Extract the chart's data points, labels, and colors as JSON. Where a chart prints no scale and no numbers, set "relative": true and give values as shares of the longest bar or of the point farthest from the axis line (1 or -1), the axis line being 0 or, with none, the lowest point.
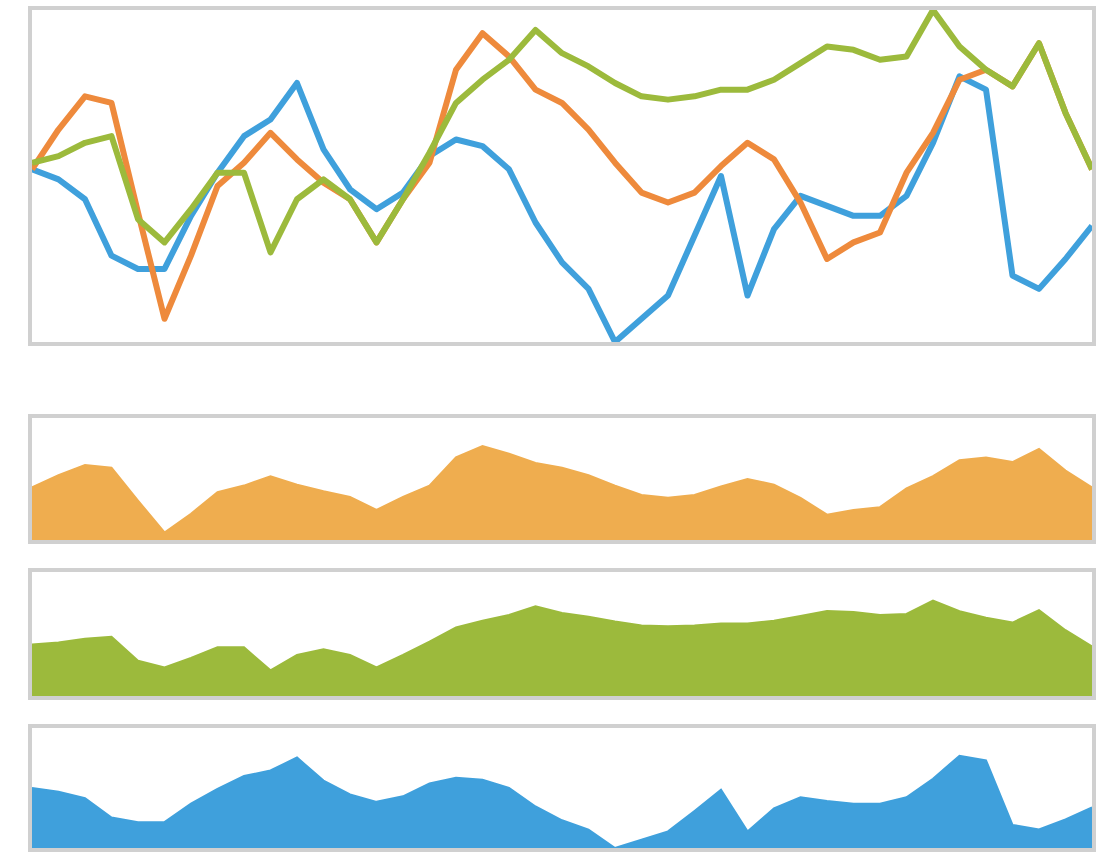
{
  "chart_data": [
    {
      "type": "line",
      "relative": true,
      "tick_labels": false,
      "categories": [
        null,
        null,
        null,
        null,
        null,
        null,
        null,
        null,
        null,
        null,
        null,
        null,
        null,
        null,
        null,
        null,
        null,
        null,
        null,
        null,
        null,
        null,
        null,
        null,
        null,
        null,
        null,
        null,
        null,
        null,
        null,
        null,
        null,
        null,
        null,
        null,
        null,
        null,
        null,
        null,
        null
      ],
      "series": [
        {
          "color": "#3fa0dc",
          "values": [
            0.52,
            0.49,
            0.43,
            0.26,
            0.22,
            0.22,
            0.38,
            0.51,
            0.62,
            0.67,
            0.78,
            0.58,
            0.46,
            0.4,
            0.45,
            0.56,
            0.61,
            0.59,
            0.52,
            0.36,
            0.24,
            0.16,
            0,
            0.07,
            0.14,
            0.32,
            0.5,
            0.14,
            0.34,
            0.44,
            0.41,
            0.38,
            0.38,
            0.44,
            0.6,
            0.8,
            0.76,
            0.2,
            0.16,
            0.25,
            0.35
          ]
        },
        {
          "color": "#ee8a3c",
          "values": [
            0.52,
            0.64,
            0.74,
            0.72,
            0.39,
            0.07,
            0.26,
            0.47,
            0.54,
            0.63,
            0.55,
            0.48,
            0.43,
            0.3,
            0.43,
            0.54,
            0.82,
            0.93,
            0.86,
            0.76,
            0.72,
            0.64,
            0.54,
            0.45,
            0.42,
            0.45,
            0.53,
            0.6,
            0.55,
            0.42,
            0.25,
            0.3,
            0.33,
            0.51,
            0.63,
            0.79,
            0.82,
            0.77,
            0.9,
            0.69,
            0.52
          ]
        },
        {
          "color": "#9cba3c",
          "values": [
            0.54,
            0.56,
            0.6,
            0.62,
            0.37,
            0.3,
            0.4,
            0.51,
            0.51,
            0.27,
            0.43,
            0.49,
            0.43,
            0.3,
            0.43,
            0.57,
            0.72,
            0.79,
            0.85,
            0.94,
            0.87,
            0.83,
            0.78,
            0.74,
            0.73,
            0.74,
            0.76,
            0.76,
            0.79,
            0.84,
            0.89,
            0.88,
            0.85,
            0.86,
            1,
            0.89,
            0.82,
            0.77,
            0.9,
            0.69,
            0.52
          ]
        }
      ]
    },
    {
      "type": "area",
      "relative": true,
      "tick_labels": false,
      "categories": [
        null,
        null,
        null,
        null,
        null,
        null,
        null,
        null,
        null,
        null,
        null,
        null,
        null,
        null,
        null,
        null,
        null,
        null,
        null,
        null,
        null,
        null,
        null,
        null,
        null,
        null,
        null,
        null,
        null,
        null,
        null,
        null,
        null,
        null,
        null,
        null,
        null,
        null,
        null,
        null,
        null
      ],
      "series": [
        {
          "color": "#efad4f",
          "values": [
            0.56,
            0.69,
            0.8,
            0.77,
            0.42,
            0.08,
            0.28,
            0.51,
            0.58,
            0.68,
            0.59,
            0.52,
            0.46,
            0.32,
            0.46,
            0.58,
            0.88,
            1,
            0.92,
            0.82,
            0.77,
            0.69,
            0.58,
            0.48,
            0.45,
            0.48,
            0.57,
            0.65,
            0.59,
            0.45,
            0.27,
            0.32,
            0.35,
            0.55,
            0.68,
            0.85,
            0.88,
            0.83,
            0.97,
            0.74,
            0.56
          ]
        }
      ]
    },
    {
      "type": "area",
      "relative": true,
      "tick_labels": false,
      "categories": [
        null,
        null,
        null,
        null,
        null,
        null,
        null,
        null,
        null,
        null,
        null,
        null,
        null,
        null,
        null,
        null,
        null,
        null,
        null,
        null,
        null,
        null,
        null,
        null,
        null,
        null,
        null,
        null,
        null,
        null,
        null,
        null,
        null,
        null,
        null,
        null,
        null,
        null,
        null,
        null,
        null
      ],
      "series": [
        {
          "color": "#9cba3c",
          "values": [
            0.54,
            0.56,
            0.6,
            0.62,
            0.37,
            0.3,
            0.4,
            0.51,
            0.51,
            0.27,
            0.43,
            0.49,
            0.43,
            0.3,
            0.43,
            0.57,
            0.72,
            0.79,
            0.85,
            0.94,
            0.87,
            0.83,
            0.78,
            0.74,
            0.73,
            0.74,
            0.76,
            0.76,
            0.79,
            0.84,
            0.89,
            0.88,
            0.85,
            0.86,
            1,
            0.89,
            0.82,
            0.77,
            0.9,
            0.69,
            0.52
          ]
        }
      ]
    },
    {
      "type": "area",
      "relative": true,
      "tick_labels": false,
      "categories": [
        null,
        null,
        null,
        null,
        null,
        null,
        null,
        null,
        null,
        null,
        null,
        null,
        null,
        null,
        null,
        null,
        null,
        null,
        null,
        null,
        null,
        null,
        null,
        null,
        null,
        null,
        null,
        null,
        null,
        null,
        null,
        null,
        null,
        null,
        null,
        null,
        null,
        null,
        null,
        null,
        null
      ],
      "series": [
        {
          "color": "#3fa0dc",
          "values": [
            0.65,
            0.61,
            0.54,
            0.33,
            0.28,
            0.28,
            0.48,
            0.64,
            0.78,
            0.84,
            0.98,
            0.73,
            0.58,
            0.5,
            0.56,
            0.7,
            0.76,
            0.74,
            0.65,
            0.45,
            0.3,
            0.2,
            0,
            0.09,
            0.18,
            0.4,
            0.63,
            0.18,
            0.43,
            0.55,
            0.51,
            0.48,
            0.48,
            0.55,
            0.75,
            1,
            0.95,
            0.25,
            0.2,
            0.31,
            0.44
          ]
        }
      ]
    }
  ]
}
